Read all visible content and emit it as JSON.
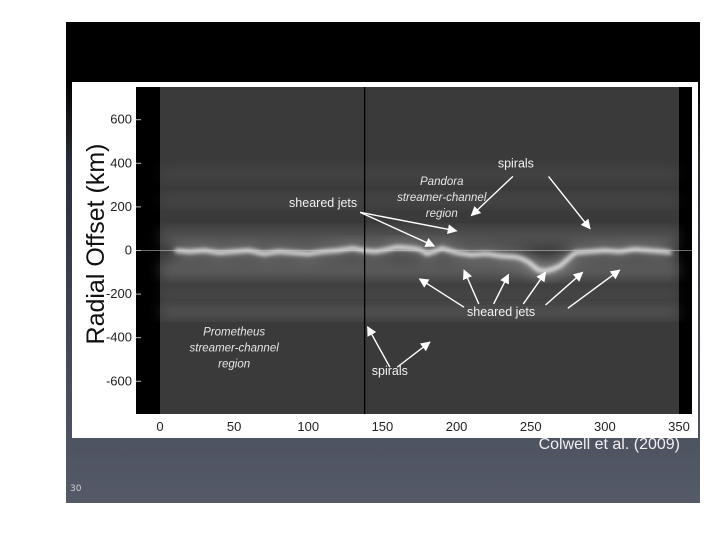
{
  "slide": {
    "citation": "Colwell et al. (2009)",
    "slide_number": "30"
  },
  "chart_data": {
    "type": "heatmap",
    "title": "",
    "xlabel": "",
    "ylabel": "Radial Offset (km)",
    "xlim": [
      0,
      350
    ],
    "ylim": [
      -750,
      750
    ],
    "x_ticks": [
      0,
      50,
      100,
      150,
      200,
      250,
      300,
      350
    ],
    "y_ticks": [
      600,
      400,
      200,
      0,
      -200,
      -400,
      -600
    ],
    "vertical_marker_x": 138,
    "colors": {
      "background": "#3a3a3a",
      "core": "#ffffff",
      "frame": "#000000"
    },
    "ring_core_profile": {
      "x": [
        10,
        20,
        30,
        40,
        50,
        60,
        70,
        80,
        90,
        100,
        110,
        120,
        130,
        138,
        145,
        150,
        160,
        170,
        175,
        180,
        185,
        190,
        200,
        210,
        220,
        230,
        240,
        245,
        250,
        255,
        260,
        265,
        270,
        275,
        280,
        290,
        300,
        310,
        320,
        330,
        340,
        345
      ],
      "y": [
        0,
        -5,
        0,
        -10,
        -5,
        0,
        -15,
        -5,
        -10,
        -15,
        -5,
        0,
        10,
        0,
        -5,
        0,
        15,
        10,
        5,
        -15,
        -5,
        10,
        -10,
        -20,
        -15,
        -25,
        -30,
        -40,
        -60,
        -90,
        -95,
        -85,
        -70,
        -40,
        -10,
        -5,
        0,
        -5,
        5,
        0,
        -5,
        -10
      ]
    },
    "annotations": [
      {
        "id": "pandora",
        "lines": [
          "Pandora",
          "streamer-channel",
          "region"
        ],
        "x": 190,
        "y": 300
      },
      {
        "id": "spirals-top",
        "lines": [
          "spirals"
        ],
        "x": 240,
        "y": 380
      },
      {
        "id": "sheared-jets-top",
        "lines": [
          "sheared jets"
        ],
        "x": 110,
        "y": 200
      },
      {
        "id": "sheared-jets-bottom",
        "lines": [
          "sheared jets"
        ],
        "x": 230,
        "y": -300
      },
      {
        "id": "prometheus",
        "lines": [
          "Prometheus",
          "streamer-channel",
          "region"
        ],
        "x": 50,
        "y": -390
      },
      {
        "id": "spirals-bottom",
        "lines": [
          "spirals"
        ],
        "x": 155,
        "y": -570
      }
    ],
    "arrows": [
      {
        "from": [
          238,
          340
        ],
        "to": [
          210,
          160
        ]
      },
      {
        "from": [
          262,
          340
        ],
        "to": [
          290,
          100
        ]
      },
      {
        "from": [
          135,
          175
        ],
        "to": [
          200,
          90
        ]
      },
      {
        "from": [
          135,
          175
        ],
        "to": [
          185,
          20
        ]
      },
      {
        "from": [
          205,
          -260
        ],
        "to": [
          175,
          -130
        ]
      },
      {
        "from": [
          215,
          -245
        ],
        "to": [
          205,
          -90
        ]
      },
      {
        "from": [
          225,
          -245
        ],
        "to": [
          235,
          -110
        ]
      },
      {
        "from": [
          245,
          -245
        ],
        "to": [
          260,
          -100
        ]
      },
      {
        "from": [
          260,
          -250
        ],
        "to": [
          285,
          -100
        ]
      },
      {
        "from": [
          275,
          -265
        ],
        "to": [
          310,
          -90
        ]
      },
      {
        "from": [
          155,
          -535
        ],
        "to": [
          140,
          -350
        ]
      },
      {
        "from": [
          160,
          -535
        ],
        "to": [
          182,
          -420
        ]
      }
    ]
  }
}
